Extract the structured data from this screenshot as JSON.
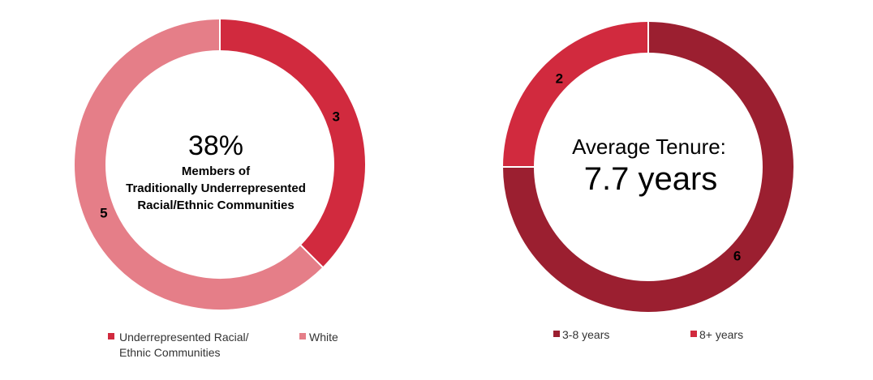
{
  "chart_data": [
    {
      "type": "pie",
      "donut": true,
      "center_text": {
        "value": "38%",
        "lines": [
          "Members of",
          "Traditionally Underrepresented",
          "Racial/Ethnic Communities"
        ]
      },
      "slices": [
        {
          "name": "Underrepresented Racial/ Ethnic Communities",
          "value": 3,
          "label": "3",
          "color": "#d12a3e"
        },
        {
          "name": "White",
          "value": 5,
          "label": "5",
          "color": "#e57e88"
        }
      ],
      "legend": {
        "position": "bottom",
        "items": [
          {
            "lines": [
              "Underrepresented Racial/",
              "Ethnic Communities"
            ],
            "color": "#d12a3e"
          },
          {
            "lines": [
              "White"
            ],
            "color": "#e57e88"
          }
        ]
      }
    },
    {
      "type": "pie",
      "donut": true,
      "center_text": {
        "lines": [
          "Average Tenure:"
        ],
        "value": "7.7 years"
      },
      "slices": [
        {
          "name": "3-8 years",
          "value": 6,
          "label": "6",
          "color": "#9b1f30"
        },
        {
          "name": "8+ years",
          "value": 2,
          "label": "2",
          "color": "#d12a3e"
        }
      ],
      "legend": {
        "position": "bottom",
        "items": [
          {
            "lines": [
              "3-8 years"
            ],
            "color": "#9b1f30"
          },
          {
            "lines": [
              "8+ years"
            ],
            "color": "#d12a3e"
          }
        ]
      }
    }
  ]
}
